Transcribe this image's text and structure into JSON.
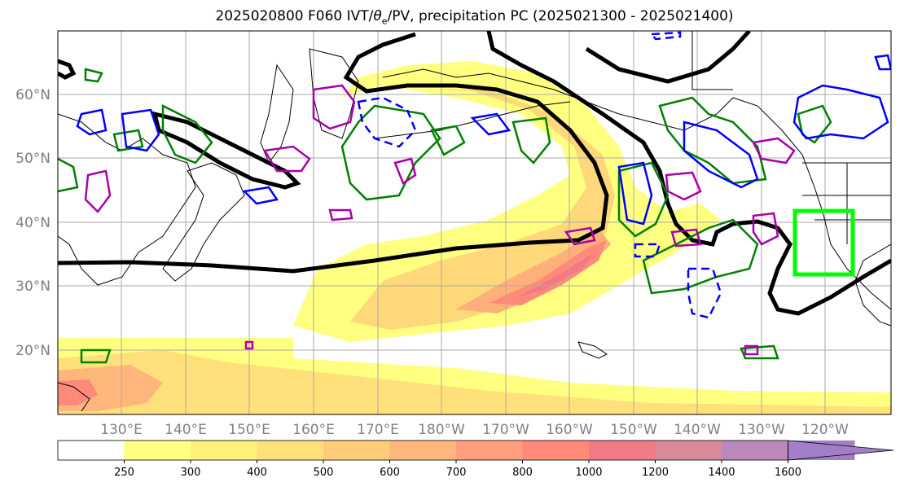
{
  "title": {
    "pre": "2025020800 F060 IVT/",
    "theta": "θ",
    "sub": "e",
    "post": "/PV, precipitation PC (2025021300 - 2025021400)"
  },
  "lat_labels": [
    {
      "label": "60°N"
    },
    {
      "label": "50°N"
    },
    {
      "label": "40°N"
    },
    {
      "label": "30°N"
    },
    {
      "label": "20°N"
    }
  ],
  "lon_labels": [
    "130°E",
    "140°E",
    "150°E",
    "160°E",
    "170°E",
    "180°W",
    "170°W",
    "160°W",
    "150°W",
    "140°W",
    "130°W",
    "120°W"
  ],
  "colorbar": {
    "ticks": [
      "250",
      "300",
      "400",
      "500",
      "600",
      "700",
      "800",
      "1000",
      "1200",
      "1400",
      "1600"
    ],
    "colors": [
      "#ffffff",
      "#ffff80",
      "#fff07a",
      "#ffe07a",
      "#ffcc7a",
      "#ffb67a",
      "#ff9e7a",
      "#ff8a7a",
      "#f07a85",
      "#d98a9a",
      "#bb88bb",
      "#a07ec8"
    ]
  },
  "colors": {
    "theta_pos": "#008000",
    "theta_neg": "#0000ff",
    "pv": "#aa00aa",
    "pv_contour": "#000000",
    "target_box": "#00ff00"
  }
}
